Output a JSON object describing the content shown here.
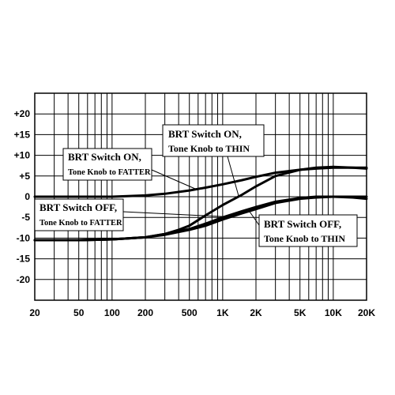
{
  "chart_data": {
    "type": "line",
    "title": "",
    "xlabel": "",
    "ylabel": "",
    "xscale": "log",
    "xlim": [
      20,
      20000
    ],
    "ylim": [
      -25,
      25
    ],
    "grid": true,
    "x_ticks": [
      20,
      50,
      100,
      200,
      500,
      1000,
      2000,
      5000,
      10000,
      20000
    ],
    "x_tick_labels": [
      "20",
      "50",
      "100",
      "200",
      "500",
      "1K",
      "2K",
      "5K",
      "10K",
      "20K"
    ],
    "y_ticks": [
      20,
      15,
      10,
      5,
      0,
      -5,
      -10,
      -15,
      -20
    ],
    "y_tick_labels": [
      "+20",
      "+15",
      "+10",
      "+5",
      "0",
      "-5",
      "-10",
      "-15",
      "-20"
    ],
    "series": [
      {
        "annotation": [
          "BRT Switch ON,",
          "Tone Knob to FATTER"
        ],
        "x": [
          20,
          50,
          100,
          200,
          300,
          500,
          700,
          1000,
          1500,
          2000,
          3000,
          5000,
          7000,
          10000,
          15000,
          20000
        ],
        "y": [
          0,
          0,
          0,
          0.3,
          0.7,
          1.5,
          2.2,
          3.0,
          4.0,
          4.8,
          5.8,
          6.5,
          6.8,
          7.0,
          7.0,
          6.8
        ]
      },
      {
        "annotation": [
          "BRT Switch ON,",
          "Tone Knob to THIN"
        ],
        "x": [
          20,
          50,
          100,
          200,
          300,
          400,
          500,
          700,
          1000,
          1500,
          2000,
          3000,
          5000,
          7000,
          10000,
          15000,
          20000
        ],
        "y": [
          -10.5,
          -10.5,
          -10.3,
          -9.8,
          -9.0,
          -8.0,
          -7.0,
          -4.5,
          -2.0,
          0.5,
          2.5,
          5.0,
          6.5,
          7.0,
          7.2,
          7.0,
          7.0
        ]
      },
      {
        "annotation": [
          "BRT Switch OFF,",
          "Tone Knob to FATTER"
        ],
        "x": [
          20,
          50,
          100,
          200,
          300,
          500,
          700,
          1000,
          1500,
          2000,
          3000,
          5000,
          7000,
          10000,
          20000
        ],
        "y": [
          -10.5,
          -10.5,
          -10.3,
          -9.8,
          -9.2,
          -8.0,
          -7.0,
          -5.5,
          -4.0,
          -3.0,
          -1.5,
          -0.5,
          -0.2,
          0,
          0
        ]
      },
      {
        "annotation": [
          "BRT Switch OFF,",
          "Tone Knob to THIN"
        ],
        "x": [
          20,
          50,
          100,
          200,
          300,
          500,
          700,
          1000,
          1500,
          2000,
          3000,
          5000,
          7000,
          10000,
          15000,
          20000
        ],
        "y": [
          -10.5,
          -10.5,
          -10.3,
          -9.8,
          -9.0,
          -7.8,
          -6.5,
          -5.0,
          -3.5,
          -2.5,
          -1.2,
          -0.3,
          0,
          0,
          -0.2,
          -0.5
        ]
      }
    ]
  }
}
